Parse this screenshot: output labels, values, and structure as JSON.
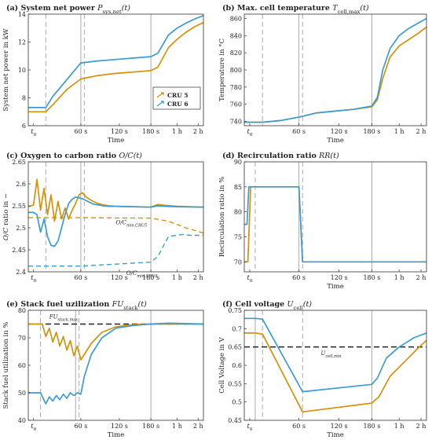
{
  "colors": {
    "cru5": "#d4920a",
    "cru6": "#3d9bcf",
    "ref": "#222222",
    "refline": "#aaaaaa",
    "grid": "#b5b5b5"
  },
  "chart_data": [
    {
      "id": "a",
      "type": "line",
      "title_prefix": "(a)",
      "title": "System net power",
      "title_math": "P",
      "title_sub": "sys,net",
      "title_suffix": "(t)",
      "xlabel": "Time",
      "ylabel": "System net power in kW",
      "x_ticks": [
        "t0",
        "60 s",
        "120 s",
        "180 s",
        "1 h",
        "2 h"
      ],
      "ylim": [
        6,
        14
      ],
      "y_ticks": [
        6,
        8,
        10,
        12,
        14
      ],
      "legend": {
        "position": "middle-right",
        "entries": [
          {
            "name": "CRU 5",
            "color": "cru5"
          },
          {
            "name": "CRU 6",
            "color": "cru6"
          }
        ]
      },
      "series": [
        {
          "name": "CRU 5",
          "color": "cru5",
          "x": [
            0,
            0.1,
            0.14,
            0.22,
            0.3,
            0.4,
            0.5,
            0.6,
            0.7,
            0.74,
            0.8,
            0.85,
            0.9,
            0.95,
            1.0
          ],
          "y": [
            7.0,
            7.0,
            7.5,
            8.6,
            9.35,
            9.6,
            9.75,
            9.85,
            9.95,
            10.2,
            11.6,
            12.2,
            12.7,
            13.1,
            13.4
          ]
        },
        {
          "name": "CRU 6",
          "color": "cru6",
          "x": [
            0,
            0.1,
            0.14,
            0.22,
            0.3,
            0.4,
            0.5,
            0.6,
            0.7,
            0.74,
            0.8,
            0.85,
            0.9,
            0.95,
            1.0
          ],
          "y": [
            7.3,
            7.3,
            8.1,
            9.3,
            10.5,
            10.65,
            10.75,
            10.85,
            10.95,
            11.2,
            12.5,
            13.0,
            13.35,
            13.65,
            13.9
          ]
        }
      ],
      "solid_refs": [
        0.3,
        0.7
      ],
      "dashed_refs": [
        0.1,
        0.32
      ],
      "hrefs": []
    },
    {
      "id": "b",
      "type": "line",
      "title_prefix": "(b)",
      "title": "Max. cell temperature",
      "title_math": "T",
      "title_sub": "cell,max",
      "title_suffix": "(t)",
      "xlabel": "Time",
      "ylabel": "Temperature in °C",
      "x_ticks": [
        "t0",
        "60 s",
        "120 s",
        "180 s",
        "1 h",
        "2 h"
      ],
      "ylim": [
        735,
        865
      ],
      "y_ticks": [
        740,
        760,
        780,
        800,
        820,
        840,
        860
      ],
      "series": [
        {
          "name": "CRU 5",
          "color": "cru5",
          "x": [
            0,
            0.1,
            0.2,
            0.3,
            0.4,
            0.5,
            0.6,
            0.7,
            0.73,
            0.76,
            0.8,
            0.85,
            0.9,
            0.95,
            1.0
          ],
          "y": [
            739,
            739,
            741,
            745,
            750,
            752,
            754,
            757,
            765,
            790,
            815,
            828,
            835,
            842,
            850
          ]
        },
        {
          "name": "CRU 6",
          "color": "cru6",
          "x": [
            0,
            0.1,
            0.2,
            0.3,
            0.4,
            0.5,
            0.6,
            0.7,
            0.73,
            0.76,
            0.8,
            0.85,
            0.9,
            0.95,
            1.0
          ],
          "y": [
            739,
            739,
            741,
            745,
            750,
            752,
            754,
            758,
            768,
            800,
            825,
            840,
            848,
            854,
            860
          ]
        }
      ],
      "solid_refs": [
        0.3,
        0.7
      ],
      "dashed_refs": [
        0.1,
        0.32
      ],
      "hrefs": []
    },
    {
      "id": "c",
      "type": "line",
      "title_prefix": "(c)",
      "title": "Oxygen to carbon ratio",
      "title_math": "O/C",
      "title_sub": "",
      "title_suffix": "(t)",
      "xlabel": "",
      "ylabel": "O/C ratio in −",
      "x_ticks": [
        "t0",
        "60 s",
        "120 s",
        "180 s",
        "1 h",
        "2 h"
      ],
      "ylim": [
        2.4,
        2.65
      ],
      "y_ticks": [
        2.4,
        2.45,
        2.5,
        2.55,
        2.6,
        2.65
      ],
      "annotations": [
        {
          "text": "O/C",
          "sub": "min,CRU5",
          "color": "cru5",
          "x": 0.5,
          "y": 2.508
        },
        {
          "text": "O/C",
          "sub": "min,CRU6",
          "color": "cru6",
          "x": 0.56,
          "y": 2.393
        }
      ],
      "series": [
        {
          "name": "CRU 5",
          "color": "cru5",
          "x": [
            0,
            0.03,
            0.05,
            0.07,
            0.09,
            0.11,
            0.13,
            0.15,
            0.17,
            0.19,
            0.21,
            0.23,
            0.25,
            0.27,
            0.29,
            0.31,
            0.33,
            0.35,
            0.37,
            0.4,
            0.43,
            0.46,
            0.5,
            0.6,
            0.7,
            0.74,
            0.78,
            0.85,
            1.0
          ],
          "y": [
            2.548,
            2.552,
            2.61,
            2.54,
            2.59,
            2.53,
            2.575,
            2.515,
            2.56,
            2.52,
            2.545,
            2.52,
            2.54,
            2.555,
            2.575,
            2.58,
            2.57,
            2.565,
            2.56,
            2.555,
            2.552,
            2.55,
            2.549,
            2.548,
            2.547,
            2.553,
            2.551,
            2.549,
            2.547
          ]
        },
        {
          "name": "CRU 6",
          "color": "cru6",
          "x": [
            0,
            0.03,
            0.05,
            0.07,
            0.09,
            0.11,
            0.13,
            0.15,
            0.17,
            0.19,
            0.21,
            0.23,
            0.25,
            0.27,
            0.29,
            0.31,
            0.33,
            0.35,
            0.37,
            0.4,
            0.43,
            0.46,
            0.5,
            0.6,
            0.7,
            0.74,
            0.78,
            0.85,
            1.0
          ],
          "y": [
            2.535,
            2.535,
            2.53,
            2.49,
            2.52,
            2.48,
            2.46,
            2.458,
            2.47,
            2.5,
            2.53,
            2.555,
            2.565,
            2.57,
            2.568,
            2.566,
            2.562,
            2.558,
            2.554,
            2.552,
            2.55,
            2.549,
            2.549,
            2.548,
            2.547,
            2.55,
            2.549,
            2.548,
            2.547
          ]
        },
        {
          "name": "O/C min CRU5",
          "color": "cru5",
          "dashed": true,
          "x": [
            0,
            0.3,
            0.7,
            0.8,
            0.9,
            1.0
          ],
          "y": [
            2.523,
            2.523,
            2.522,
            2.515,
            2.5,
            2.488
          ]
        },
        {
          "name": "O/C min CRU6",
          "color": "cru6",
          "dashed": true,
          "x": [
            0,
            0.3,
            0.7,
            0.74,
            0.8,
            0.88,
            0.92,
            1.0
          ],
          "y": [
            2.413,
            2.413,
            2.422,
            2.435,
            2.48,
            2.485,
            2.483,
            2.483
          ]
        }
      ],
      "solid_refs": [
        0.3,
        0.7
      ],
      "dashed_refs": [
        0.1,
        0.32
      ],
      "hrefs": []
    },
    {
      "id": "d",
      "type": "line",
      "title_prefix": "(d)",
      "title": "Recirculation ratio",
      "title_math": "RR",
      "title_sub": "",
      "title_suffix": "(t)",
      "xlabel": "Time",
      "ylabel": "Recirculation ratio in %",
      "x_ticks": [
        "t0",
        "60 s",
        "120 s",
        "180 s",
        "1 h",
        "2 h"
      ],
      "ylim": [
        68,
        90
      ],
      "y_ticks": [
        70,
        75,
        80,
        85,
        90
      ],
      "series": [
        {
          "name": "CRU 5",
          "color": "cru5",
          "x": [
            0,
            0.02,
            0.035,
            0.29,
            0.3,
            0.32,
            1.0
          ],
          "y": [
            70,
            70,
            85,
            85,
            85,
            70,
            70
          ]
        },
        {
          "name": "CRU 6",
          "color": "cru6",
          "x": [
            0,
            0.015,
            0.025,
            0.29,
            0.3,
            0.32,
            1.0
          ],
          "y": [
            77.5,
            77.5,
            85,
            85,
            85,
            70,
            70
          ]
        }
      ],
      "solid_refs": [
        0.3,
        0.7
      ],
      "dashed_refs": [
        0.06,
        0.32
      ],
      "hrefs": []
    },
    {
      "id": "e",
      "type": "line",
      "title_prefix": "(e)",
      "title": "Stack fuel uzilization",
      "title_math": "FU",
      "title_sub": "stack",
      "title_suffix": "(t)",
      "xlabel": "Time",
      "ylabel": "Stack fuel utilization in %",
      "x_ticks": [
        "t0",
        "60 s",
        "120 s",
        "180 s",
        "1 h",
        "2 h"
      ],
      "ylim": [
        40,
        80
      ],
      "y_ticks": [
        40,
        50,
        60,
        70,
        80
      ],
      "annotations": [
        {
          "text": "FU",
          "sub": "stack,max",
          "color": "ref",
          "x": 0.12,
          "y": 77.0
        }
      ],
      "series": [
        {
          "name": "CRU 5",
          "color": "cru5",
          "x": [
            0,
            0.08,
            0.1,
            0.12,
            0.14,
            0.16,
            0.18,
            0.2,
            0.22,
            0.24,
            0.26,
            0.28,
            0.3,
            0.32,
            0.36,
            0.42,
            0.5,
            0.6,
            0.7,
            0.8,
            1.0
          ],
          "y": [
            75,
            75,
            70.5,
            73.5,
            68.5,
            72,
            67,
            70.5,
            65.5,
            69,
            63.5,
            67,
            62,
            64,
            68,
            72,
            74,
            74.8,
            75,
            75,
            75
          ]
        },
        {
          "name": "CRU 6",
          "color": "cru6",
          "x": [
            0,
            0.07,
            0.1,
            0.12,
            0.14,
            0.16,
            0.18,
            0.2,
            0.22,
            0.24,
            0.26,
            0.28,
            0.3,
            0.32,
            0.36,
            0.42,
            0.5,
            0.6,
            0.7,
            0.8,
            1.0
          ],
          "y": [
            50,
            50,
            46,
            48.5,
            47,
            49,
            47.5,
            49.5,
            48,
            50,
            49,
            50,
            49.5,
            56,
            64,
            70,
            73.5,
            74.5,
            75,
            75.3,
            75
          ]
        }
      ],
      "solid_refs": [
        0.27,
        0.7
      ],
      "dashed_refs": [
        0.07,
        0.29
      ],
      "hrefs": [
        {
          "y": 75,
          "color": "ref"
        }
      ]
    },
    {
      "id": "f",
      "type": "line",
      "title_prefix": "(f)",
      "title": "Cell voltage",
      "title_math": "U",
      "title_sub": "cell",
      "title_suffix": "(t)",
      "xlabel": "Time",
      "ylabel": "Cell Voltage in V",
      "x_ticks": [
        "t0",
        "60 s",
        "120 s",
        "180 s",
        "1 h",
        "2 h"
      ],
      "ylim": [
        0.45,
        0.75
      ],
      "y_ticks": [
        0.45,
        0.5,
        0.55,
        0.6,
        0.65,
        0.7,
        0.75
      ],
      "annotations": [
        {
          "text": "U",
          "sub": "cell,min",
          "color": "ref",
          "x": 0.42,
          "y": 0.628
        }
      ],
      "series": [
        {
          "name": "CRU 5",
          "color": "cru5",
          "x": [
            0,
            0.06,
            0.1,
            0.32,
            0.7,
            0.74,
            0.8,
            0.88,
            0.95,
            1.0
          ],
          "y": [
            0.688,
            0.688,
            0.685,
            0.473,
            0.497,
            0.515,
            0.57,
            0.61,
            0.645,
            0.668
          ]
        },
        {
          "name": "CRU 6",
          "color": "cru6",
          "x": [
            0,
            0.06,
            0.1,
            0.32,
            0.7,
            0.73,
            0.78,
            0.85,
            0.93,
            1.0
          ],
          "y": [
            0.728,
            0.728,
            0.726,
            0.528,
            0.548,
            0.565,
            0.62,
            0.65,
            0.675,
            0.688
          ]
        }
      ],
      "solid_refs": [
        0.06,
        0.7
      ],
      "dashed_refs": [
        0.1,
        0.32
      ],
      "hrefs": [
        {
          "y": 0.65,
          "color": "ref"
        }
      ]
    }
  ]
}
